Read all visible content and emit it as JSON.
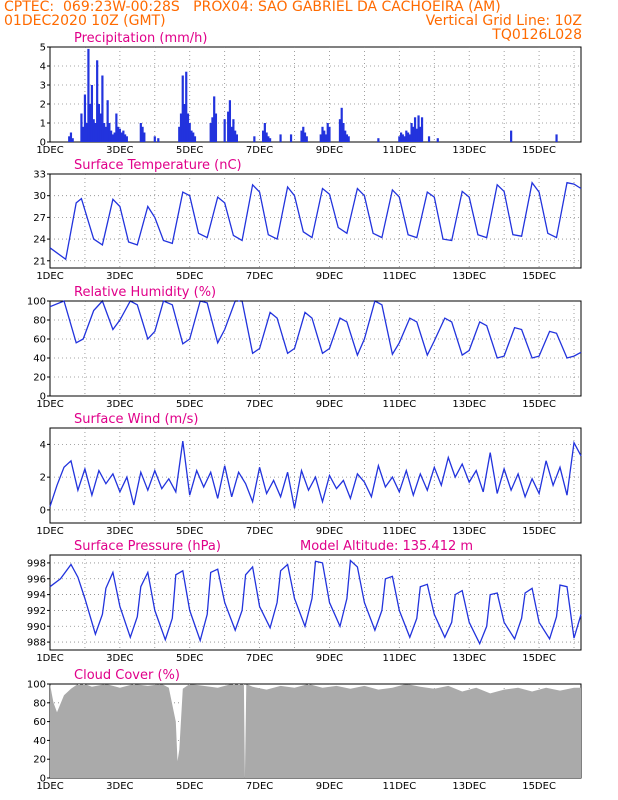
{
  "header": {
    "line1": "CPTEC:  069:23W-00:28S   PROX04: SAO GABRIEL DA CACHOEIRA (AM)",
    "line2_left": "01DEC2020 10Z (GMT)",
    "line2_right": "Vertical Grid Line: 10Z",
    "line3_right": "TQ0126L028"
  },
  "colors": {
    "header": "#ff6a00",
    "title": "#e0008a",
    "series": "#2233dd",
    "cloud": "#aaaaaa"
  },
  "chart_data": [
    {
      "type": "bar",
      "title": "Precipitation (mm/h)",
      "x_tick_labels": [
        "1DEC",
        "3DEC",
        "5DEC",
        "7DEC",
        "9DEC",
        "11DEC",
        "13DEC",
        "15DEC"
      ],
      "x_range_days": [
        1,
        16.2
      ],
      "ylim": [
        0,
        5
      ],
      "yticks": [
        0,
        1,
        2,
        3,
        4,
        5
      ],
      "x": [
        1.55,
        1.6,
        1.65,
        1.9,
        1.95,
        2.0,
        2.05,
        2.1,
        2.15,
        2.2,
        2.25,
        2.3,
        2.35,
        2.4,
        2.45,
        2.5,
        2.55,
        2.6,
        2.65,
        2.7,
        2.75,
        2.8,
        2.85,
        2.9,
        2.95,
        3.0,
        3.05,
        3.1,
        3.15,
        3.2,
        3.6,
        3.65,
        3.7,
        4.0,
        4.1,
        4.7,
        4.75,
        4.8,
        4.85,
        4.9,
        4.95,
        5.0,
        5.05,
        5.1,
        5.15,
        5.6,
        5.65,
        5.7,
        5.75,
        6.0,
        6.1,
        6.15,
        6.2,
        6.25,
        6.3,
        6.35,
        6.85,
        7.1,
        7.15,
        7.2,
        7.25,
        7.3,
        7.6,
        7.9,
        8.2,
        8.25,
        8.3,
        8.35,
        8.75,
        8.8,
        8.85,
        8.9,
        8.95,
        9.0,
        9.3,
        9.35,
        9.4,
        9.45,
        9.5,
        9.55,
        10.4,
        11.0,
        11.05,
        11.1,
        11.15,
        11.2,
        11.25,
        11.3,
        11.35,
        11.4,
        11.45,
        11.5,
        11.55,
        11.6,
        11.65,
        11.85,
        12.1,
        14.2,
        15.5
      ],
      "values": [
        0.3,
        0.5,
        0.2,
        1.5,
        0.8,
        2.5,
        1.0,
        4.9,
        2.0,
        3.0,
        1.2,
        1.0,
        4.3,
        2.0,
        1.5,
        3.5,
        1.0,
        0.8,
        2.2,
        1.0,
        0.6,
        0.4,
        0.5,
        1.5,
        0.8,
        0.7,
        0.5,
        0.6,
        0.4,
        0.3,
        1.0,
        0.8,
        0.5,
        0.3,
        0.2,
        0.8,
        1.5,
        3.5,
        2.0,
        3.7,
        1.5,
        1.0,
        0.6,
        0.5,
        0.3,
        1.0,
        1.3,
        2.4,
        1.5,
        1.2,
        1.6,
        2.2,
        0.8,
        1.2,
        0.6,
        0.4,
        0.3,
        0.6,
        1.0,
        0.5,
        0.3,
        0.2,
        0.4,
        0.4,
        0.6,
        0.8,
        0.5,
        0.3,
        0.4,
        0.8,
        0.6,
        0.4,
        1.0,
        0.8,
        1.2,
        1.8,
        1.0,
        0.6,
        0.4,
        0.3,
        0.2,
        0.3,
        0.5,
        0.4,
        0.3,
        0.6,
        0.5,
        0.4,
        1.0,
        0.8,
        1.3,
        0.7,
        1.4,
        0.8,
        1.3,
        0.3,
        0.2,
        0.6,
        0.4
      ]
    },
    {
      "type": "line",
      "title": "Surface Temperature (nC)",
      "x_tick_labels": [
        "1DEC",
        "3DEC",
        "5DEC",
        "7DEC",
        "9DEC",
        "11DEC",
        "13DEC",
        "15DEC"
      ],
      "x_range_days": [
        1,
        16.2
      ],
      "ylim": [
        20,
        33
      ],
      "yticks": [
        21,
        24,
        27,
        30,
        33
      ],
      "x": [
        1.0,
        1.45,
        1.75,
        1.9,
        2.25,
        2.5,
        2.8,
        3.0,
        3.25,
        3.5,
        3.8,
        4.0,
        4.25,
        4.5,
        4.8,
        5.0,
        5.25,
        5.5,
        5.8,
        6.0,
        6.25,
        6.5,
        6.8,
        7.0,
        7.25,
        7.5,
        7.8,
        8.0,
        8.25,
        8.5,
        8.8,
        9.0,
        9.25,
        9.5,
        9.8,
        10.0,
        10.25,
        10.5,
        10.8,
        11.0,
        11.25,
        11.5,
        11.8,
        12.0,
        12.25,
        12.5,
        12.8,
        13.0,
        13.25,
        13.5,
        13.8,
        14.0,
        14.25,
        14.5,
        14.8,
        15.0,
        15.25,
        15.5,
        15.8,
        16.0,
        16.2
      ],
      "values": [
        22.8,
        21.2,
        29.0,
        29.6,
        24.0,
        23.2,
        29.5,
        28.5,
        23.6,
        23.2,
        28.5,
        27.0,
        23.8,
        23.4,
        30.5,
        30.0,
        24.8,
        24.2,
        29.8,
        29.0,
        24.5,
        23.8,
        31.5,
        30.5,
        24.6,
        24.0,
        31.2,
        30.0,
        25.0,
        24.2,
        31.0,
        30.2,
        25.6,
        24.8,
        31.0,
        30.0,
        24.8,
        24.2,
        30.8,
        29.8,
        24.6,
        24.2,
        30.5,
        29.8,
        24.0,
        23.8,
        30.6,
        29.8,
        24.6,
        24.2,
        31.5,
        30.6,
        24.6,
        24.4,
        31.8,
        30.5,
        24.8,
        24.2,
        31.8,
        31.6,
        31.0
      ]
    },
    {
      "type": "line",
      "title": "Relative Humidity (%)",
      "x_tick_labels": [
        "1DEC",
        "3DEC",
        "5DEC",
        "7DEC",
        "9DEC",
        "11DEC",
        "13DEC",
        "15DEC"
      ],
      "x_range_days": [
        1,
        16.2
      ],
      "ylim": [
        0,
        100
      ],
      "yticks": [
        0,
        20,
        40,
        60,
        80,
        100
      ],
      "x": [
        1.0,
        1.4,
        1.75,
        1.95,
        2.25,
        2.5,
        2.8,
        3.0,
        3.3,
        3.5,
        3.8,
        4.0,
        4.25,
        4.5,
        4.8,
        5.0,
        5.3,
        5.5,
        5.8,
        6.0,
        6.3,
        6.5,
        6.8,
        7.0,
        7.3,
        7.5,
        7.8,
        8.0,
        8.3,
        8.5,
        8.8,
        9.0,
        9.3,
        9.5,
        9.8,
        10.0,
        10.3,
        10.5,
        10.8,
        11.0,
        11.3,
        11.5,
        11.8,
        12.0,
        12.3,
        12.5,
        12.8,
        13.0,
        13.3,
        13.5,
        13.8,
        14.0,
        14.3,
        14.5,
        14.8,
        15.0,
        15.3,
        15.5,
        15.8,
        16.0,
        16.2
      ],
      "values": [
        94,
        100,
        56,
        60,
        90,
        100,
        70,
        80,
        100,
        96,
        60,
        68,
        100,
        96,
        55,
        60,
        100,
        98,
        56,
        70,
        100,
        100,
        45,
        50,
        88,
        82,
        45,
        50,
        88,
        82,
        45,
        50,
        82,
        78,
        43,
        60,
        100,
        96,
        44,
        56,
        82,
        78,
        43,
        58,
        82,
        78,
        43,
        48,
        78,
        74,
        40,
        42,
        72,
        70,
        40,
        42,
        68,
        66,
        40,
        42,
        46
      ]
    },
    {
      "type": "line",
      "title": "Surface Wind (m/s)",
      "x_tick_labels": [
        "1DEC",
        "3DEC",
        "5DEC",
        "7DEC",
        "9DEC",
        "11DEC",
        "13DEC",
        "15DEC"
      ],
      "x_range_days": [
        1,
        16.2
      ],
      "ylim": [
        -0.8,
        5.0
      ],
      "yticks": [
        0,
        2,
        4
      ],
      "x": [
        1.0,
        1.2,
        1.4,
        1.6,
        1.8,
        2.0,
        2.2,
        2.4,
        2.6,
        2.8,
        3.0,
        3.2,
        3.4,
        3.6,
        3.8,
        4.0,
        4.2,
        4.4,
        4.6,
        4.8,
        5.0,
        5.2,
        5.4,
        5.6,
        5.8,
        6.0,
        6.2,
        6.4,
        6.6,
        6.8,
        7.0,
        7.2,
        7.4,
        7.6,
        7.8,
        8.0,
        8.2,
        8.4,
        8.6,
        8.8,
        9.0,
        9.2,
        9.4,
        9.6,
        9.8,
        10.0,
        10.2,
        10.4,
        10.6,
        10.8,
        11.0,
        11.2,
        11.4,
        11.6,
        11.8,
        12.0,
        12.2,
        12.4,
        12.6,
        12.8,
        13.0,
        13.2,
        13.4,
        13.6,
        13.8,
        14.0,
        14.2,
        14.4,
        14.6,
        14.8,
        15.0,
        15.2,
        15.4,
        15.6,
        15.8,
        16.0,
        16.2
      ],
      "values": [
        0.2,
        1.5,
        2.6,
        3.0,
        1.2,
        2.5,
        0.9,
        2.4,
        1.6,
        2.2,
        1.1,
        2.0,
        0.3,
        2.3,
        1.2,
        2.4,
        1.3,
        1.9,
        1.1,
        4.2,
        0.9,
        2.4,
        1.4,
        2.3,
        0.7,
        2.7,
        0.8,
        2.3,
        1.6,
        0.5,
        2.6,
        1.0,
        1.8,
        0.8,
        2.3,
        0.1,
        2.4,
        1.2,
        2.0,
        0.5,
        2.1,
        1.3,
        1.8,
        0.7,
        2.2,
        1.7,
        0.8,
        2.7,
        1.4,
        2.0,
        1.1,
        2.4,
        0.9,
        2.2,
        1.2,
        2.6,
        1.5,
        3.2,
        2.0,
        2.8,
        1.7,
        2.4,
        1.1,
        3.5,
        1.0,
        2.5,
        1.2,
        2.2,
        0.8,
        1.9,
        1.0,
        3.0,
        1.5,
        2.6,
        0.9,
        4.1,
        3.3
      ]
    },
    {
      "type": "line",
      "title": "Surface Pressure (hPa)",
      "annotation": "Model Altitude: 135.412 m",
      "x_tick_labels": [
        "1DEC",
        "3DEC",
        "5DEC",
        "7DEC",
        "9DEC",
        "11DEC",
        "13DEC",
        "15DEC"
      ],
      "x_range_days": [
        1,
        16.2
      ],
      "ylim": [
        987,
        999
      ],
      "yticks": [
        988,
        990,
        992,
        994,
        996,
        998
      ],
      "x": [
        1.0,
        1.3,
        1.6,
        1.8,
        2.0,
        2.3,
        2.5,
        2.6,
        2.8,
        3.0,
        3.3,
        3.5,
        3.6,
        3.8,
        4.0,
        4.3,
        4.5,
        4.6,
        4.8,
        5.0,
        5.3,
        5.5,
        5.6,
        5.8,
        6.0,
        6.3,
        6.5,
        6.6,
        6.8,
        7.0,
        7.3,
        7.5,
        7.6,
        7.8,
        8.0,
        8.3,
        8.5,
        8.6,
        8.8,
        9.0,
        9.3,
        9.5,
        9.6,
        9.8,
        10.0,
        10.3,
        10.5,
        10.6,
        10.8,
        11.0,
        11.3,
        11.5,
        11.6,
        11.8,
        12.0,
        12.3,
        12.5,
        12.6,
        12.8,
        13.0,
        13.3,
        13.5,
        13.6,
        13.8,
        14.0,
        14.3,
        14.5,
        14.6,
        14.8,
        15.0,
        15.3,
        15.5,
        15.6,
        15.8,
        16.0,
        16.2
      ],
      "values": [
        995.0,
        996.0,
        997.8,
        996.2,
        993.5,
        989.0,
        991.5,
        994.8,
        996.8,
        992.5,
        988.6,
        991.2,
        995.0,
        996.8,
        992.0,
        988.3,
        991.0,
        996.5,
        997.0,
        992.0,
        988.2,
        991.5,
        996.8,
        997.2,
        993.0,
        989.5,
        992.0,
        996.5,
        997.5,
        992.5,
        989.8,
        993.0,
        997.0,
        997.8,
        993.5,
        990.0,
        993.5,
        998.2,
        998.0,
        993.0,
        990.0,
        993.5,
        998.3,
        997.5,
        993.0,
        989.5,
        992.0,
        996.0,
        996.3,
        992.0,
        988.6,
        991.0,
        995.0,
        995.3,
        991.5,
        988.6,
        990.5,
        994.0,
        994.5,
        990.5,
        987.8,
        990.0,
        994.0,
        994.2,
        990.5,
        988.4,
        991.0,
        994.2,
        994.8,
        990.5,
        988.4,
        991.2,
        995.2,
        995.0,
        988.5,
        991.5
      ]
    },
    {
      "type": "area",
      "title": "Cloud Cover (%)",
      "x_tick_labels": [
        "1DEC",
        "3DEC",
        "5DEC",
        "7DEC",
        "9DEC",
        "11DEC",
        "13DEC",
        "15DEC"
      ],
      "x_range_days": [
        1,
        16.2
      ],
      "ylim": [
        0,
        100
      ],
      "yticks": [
        0,
        20,
        40,
        60,
        80,
        100
      ],
      "x": [
        1.0,
        1.05,
        1.1,
        1.2,
        1.4,
        1.6,
        1.8,
        2.0,
        2.2,
        2.6,
        3.0,
        3.4,
        3.8,
        4.2,
        4.4,
        4.6,
        4.65,
        4.7,
        4.8,
        5.0,
        5.4,
        5.8,
        6.2,
        6.55,
        6.58,
        6.62,
        6.8,
        7.2,
        7.6,
        8.0,
        8.4,
        8.8,
        9.2,
        9.6,
        10.0,
        10.4,
        10.8,
        11.2,
        11.6,
        12.0,
        12.4,
        12.8,
        13.2,
        13.6,
        14.0,
        14.4,
        14.8,
        15.2,
        15.6,
        16.0,
        16.2
      ],
      "values": [
        100,
        90,
        80,
        70,
        88,
        95,
        100,
        100,
        97,
        100,
        96,
        100,
        98,
        100,
        96,
        60,
        18,
        30,
        95,
        100,
        98,
        96,
        100,
        100,
        0,
        100,
        97,
        94,
        98,
        96,
        100,
        96,
        98,
        95,
        98,
        94,
        96,
        100,
        97,
        95,
        98,
        92,
        96,
        90,
        94,
        96,
        92,
        96,
        93,
        96,
        96
      ]
    }
  ]
}
